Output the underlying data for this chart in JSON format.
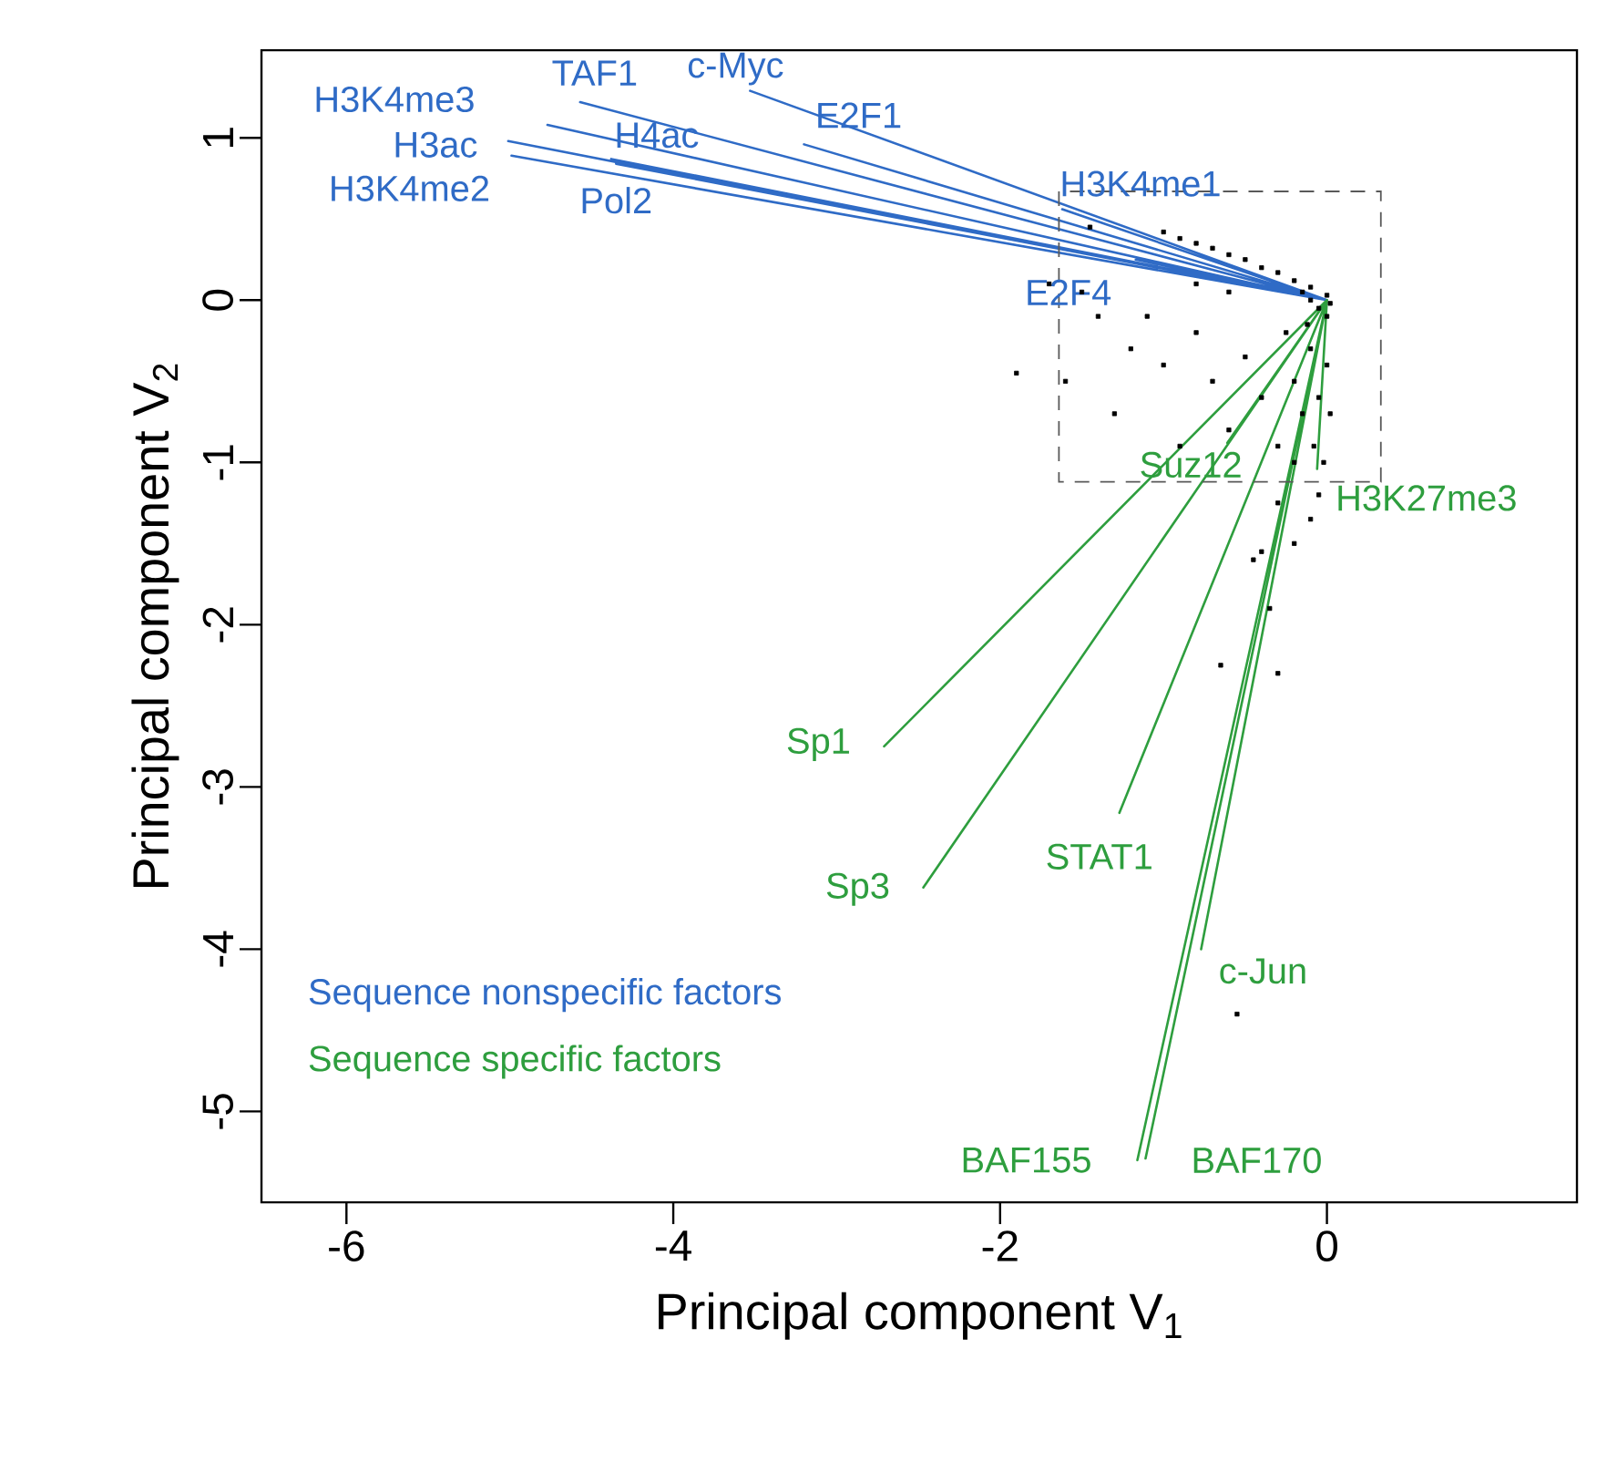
{
  "chart_data": {
    "type": "scatter",
    "xlabel": "Principal component V$_{1}$",
    "ylabel": "Principal component V$_{2}$",
    "xlim": [
      -6.52,
      1.53
    ],
    "ylim": [
      -5.56,
      1.54
    ],
    "xticks": [
      -6,
      -4,
      -2,
      0
    ],
    "yticks": [
      -5,
      -4,
      -3,
      -2,
      -1,
      0,
      1
    ],
    "legend": "bottom left",
    "line_style": "solid",
    "series": [
      {
        "color": "#000000",
        "marker": "square",
        "x": [
          -1.0,
          -0.9,
          -0.8,
          -0.7,
          -0.6,
          -0.5,
          -0.4,
          -0.3,
          -0.2,
          -0.1,
          0,
          0.02,
          -0.05,
          0.0,
          -0.1,
          -0.15,
          -1.6,
          -1.9,
          -1.3,
          -1.2,
          -1.1,
          -1.0,
          -0.9,
          -0.8,
          -0.7,
          -0.6,
          -0.5,
          -0.4,
          -0.3,
          -0.25,
          -0.2,
          -0.15,
          -0.1,
          -0.08,
          -0.05,
          0.0,
          0.02,
          -0.02,
          -0.05,
          -0.1,
          -0.2,
          -0.3,
          -1.4,
          -1.5,
          -1.45,
          -0.35,
          -0.45,
          -0.3,
          -0.65,
          -0.55,
          -0.4,
          -0.2,
          -0.12,
          -0.6,
          -0.8,
          -1.7
        ],
        "values": [
          0.42,
          0.38,
          0.35,
          0.32,
          0.28,
          0.25,
          0.2,
          0.17,
          0.12,
          0.08,
          0.03,
          -0.02,
          -0.05,
          -0.1,
          0.0,
          0.05,
          -0.5,
          -0.45,
          -0.7,
          -0.3,
          -0.1,
          -0.4,
          -0.9,
          -0.2,
          -0.5,
          -0.8,
          -0.35,
          -0.6,
          -0.9,
          -0.2,
          -0.5,
          -0.7,
          -0.3,
          -0.9,
          -0.6,
          -0.4,
          -0.7,
          -1.0,
          -1.2,
          -1.35,
          -1.5,
          -1.25,
          -0.1,
          0.05,
          0.45,
          -1.9,
          -1.6,
          -2.3,
          -2.25,
          -4.4,
          -1.55,
          -1.0,
          -0.15,
          0.05,
          0.1,
          0.1
        ]
      },
      {
        "type": "line",
        "name": "Sequence nonspecific factors",
        "color": "#2f6bc6",
        "x": [
          0,
          -4.77,
          null,
          0,
          -4.57,
          null,
          0,
          -3.53,
          null,
          0,
          -3.2,
          null,
          0,
          -5.01,
          null,
          0,
          -4.99,
          null,
          0,
          -4.38,
          null,
          0,
          -4.35,
          null,
          0,
          -1.62,
          null,
          0,
          -1.17
        ],
        "values": [
          0,
          1.08,
          null,
          0,
          1.22,
          null,
          0,
          1.29,
          null,
          0,
          0.96,
          null,
          0,
          0.98,
          null,
          0,
          0.89,
          null,
          0,
          0.87,
          null,
          0,
          0.84,
          null,
          0,
          0.56,
          null,
          0,
          0.25
        ]
      },
      {
        "type": "line",
        "name": "Sequence specific factors",
        "color": "#2e9e3e",
        "x": [
          0,
          -2.71,
          null,
          0,
          -2.47,
          null,
          0,
          -1.27,
          null,
          0,
          -0.77,
          null,
          0,
          -1.16,
          null,
          0,
          -1.11,
          null,
          0,
          -0.61,
          null,
          0,
          -0.06
        ],
        "values": [
          0,
          -2.75,
          null,
          0,
          -3.62,
          null,
          0,
          -3.16,
          null,
          0,
          -4.0,
          null,
          0,
          -5.3,
          null,
          0,
          -5.29,
          null,
          0,
          -0.88,
          null,
          0,
          -1.04
        ]
      }
    ],
    "annotations": [
      {
        "text": "H3K4me3",
        "x": -4.77,
        "y": 1.08
      },
      {
        "text": "TAF1",
        "x": -4.57,
        "y": 1.22
      },
      {
        "text": "c-Myc",
        "x": -3.53,
        "y": 1.29
      },
      {
        "text": "E2F1",
        "x": -3.2,
        "y": 0.96
      },
      {
        "text": "H3ac",
        "x": -5.01,
        "y": 0.98
      },
      {
        "text": "H3K4me2",
        "x": -4.99,
        "y": 0.89
      },
      {
        "text": "H4ac",
        "x": -4.38,
        "y": 0.87
      },
      {
        "text": "Pol2",
        "x": -4.35,
        "y": 0.84
      },
      {
        "text": "H3K4me1",
        "x": -1.62,
        "y": 0.56
      },
      {
        "text": "E2F4",
        "x": -1.17,
        "y": 0.25
      },
      {
        "text": "Suz12",
        "x": -0.61,
        "y": -0.88
      },
      {
        "text": "H3K27me3",
        "x": -0.06,
        "y": -1.04
      },
      {
        "text": "Sp1",
        "x": -2.71,
        "y": -2.75
      },
      {
        "text": "Sp3",
        "x": -2.47,
        "y": -3.62
      },
      {
        "text": "STAT1",
        "x": -1.27,
        "y": -3.16
      },
      {
        "text": "c-Jun",
        "x": -0.77,
        "y": -4.0
      },
      {
        "text": "BAF155",
        "x": -1.16,
        "y": -5.3
      },
      {
        "text": "BAF170",
        "x": -1.11,
        "y": -5.29
      }
    ]
  }
}
